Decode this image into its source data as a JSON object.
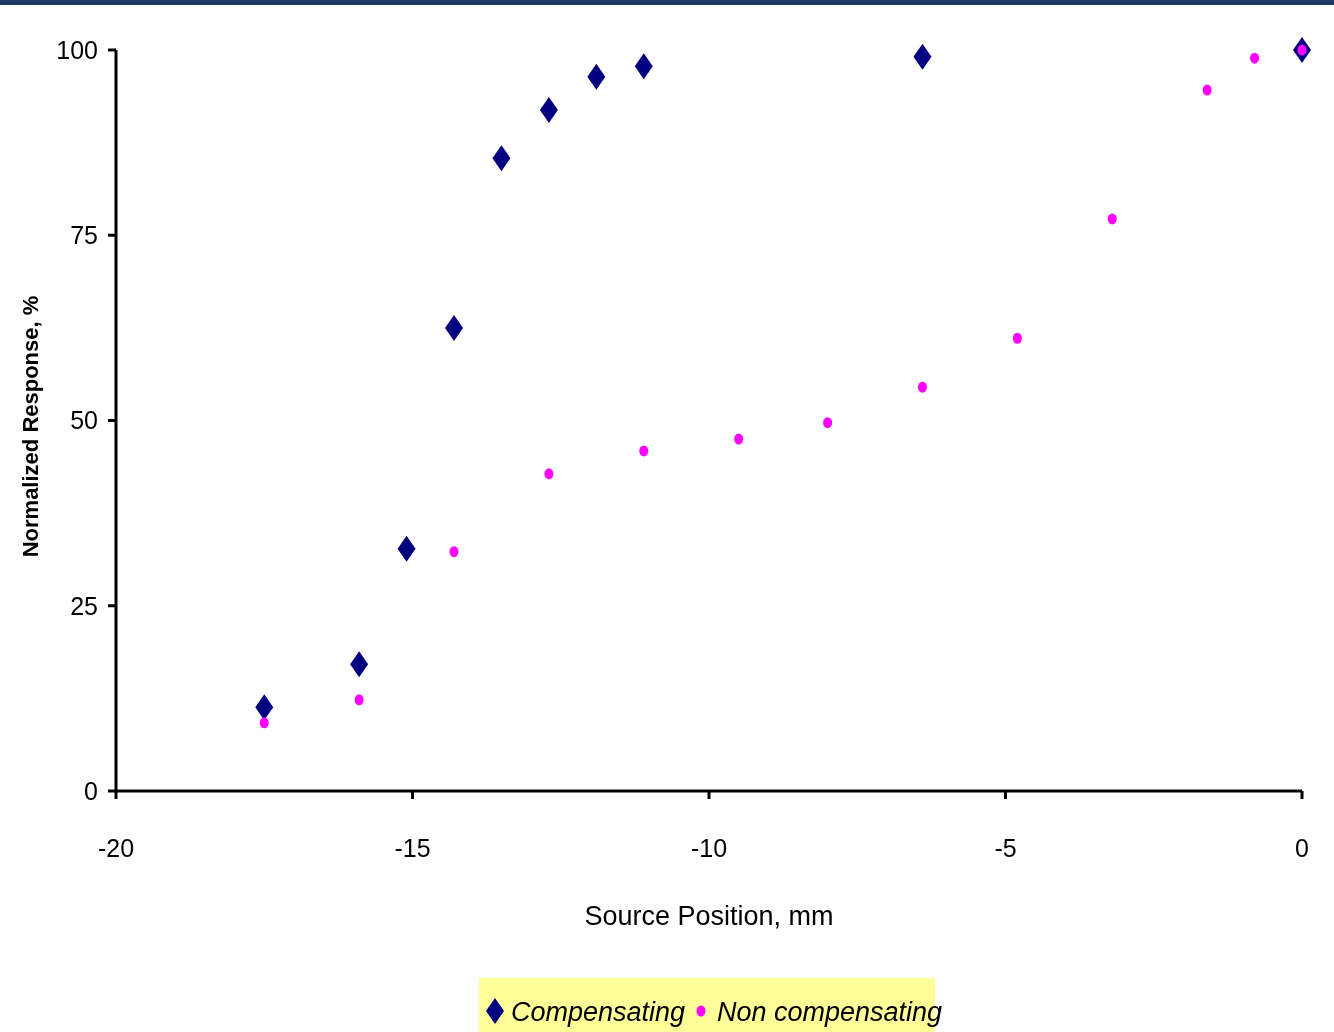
{
  "chart_data": {
    "type": "scatter",
    "xlabel": "Source Position, mm",
    "ylabel": "Normalized Response, %",
    "xlim": [
      -20,
      0
    ],
    "xticks": [
      -20,
      -15,
      -10,
      -5,
      0
    ],
    "ylim": [
      0,
      100
    ],
    "yticks": [
      0,
      25,
      50,
      75,
      100
    ],
    "grid": false,
    "legend": "bottom",
    "series": [
      {
        "name": "Compensating",
        "color": "#000080",
        "marker": "diamond",
        "x": [
          -17.5,
          -15.9,
          -15.1,
          -14.3,
          -13.5,
          -12.7,
          -11.9,
          -11.1,
          -6.4,
          0
        ],
        "values": [
          11.3,
          17.1,
          32.7,
          62.5,
          85.4,
          91.9,
          96.4,
          97.8,
          99.1,
          100
        ]
      },
      {
        "name": "Non compensating",
        "color": "#ff00ff",
        "marker": "circle",
        "x": [
          -17.5,
          -15.9,
          -14.3,
          -12.7,
          -11.1,
          -9.5,
          -8.0,
          -6.4,
          -4.8,
          -3.2,
          -1.6,
          -0.8,
          0
        ],
        "values": [
          9.2,
          12.3,
          32.3,
          42.8,
          45.9,
          47.5,
          49.7,
          54.5,
          61.1,
          77.2,
          94.6,
          98.9,
          100
        ]
      }
    ]
  }
}
